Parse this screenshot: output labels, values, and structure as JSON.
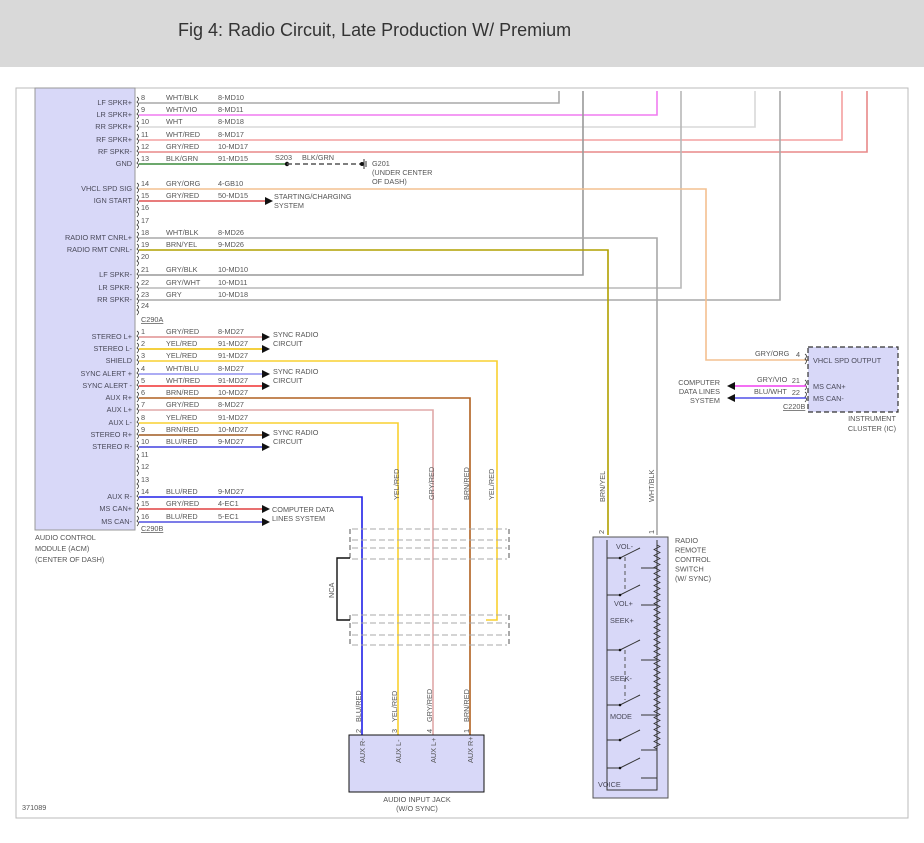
{
  "header": {
    "title": "Fig 4: Radio Circuit, Late Production W/ Premium"
  },
  "figure_id": "371089",
  "acm": {
    "caption": [
      "AUDIO CONTROL",
      "MODULE (ACM)",
      "(CENTER OF DASH)"
    ],
    "connector_a": "C290A",
    "connector_b": "C290B",
    "pins_a": [
      {
        "pin": "8",
        "signal": "LF SPKR+",
        "wire": "WHT/BLK",
        "circuit": "8-MD10",
        "color": "#a8a8a8"
      },
      {
        "pin": "9",
        "signal": "LR SPKR+",
        "wire": "WHT/VIO",
        "circuit": "8-MD11",
        "color": "#f07cf0"
      },
      {
        "pin": "10",
        "signal": "RR SPKR+",
        "wire": "WHT",
        "circuit": "8-MD18",
        "color": "#d8d8d8"
      },
      {
        "pin": "11",
        "signal": "RF SPKR+",
        "wire": "WHT/RED",
        "circuit": "8-MD17",
        "color": "#f4a0a0"
      },
      {
        "pin": "12",
        "signal": "RF SPKR-",
        "wire": "GRY/RED",
        "circuit": "10-MD17",
        "color": "#e88888"
      },
      {
        "pin": "13",
        "signal": "GND",
        "wire": "BLK/GRN",
        "circuit": "91-MD15",
        "color": "#3c8c3c"
      },
      {
        "pin": "14",
        "signal": "VHCL SPD SIG",
        "wire": "GRY/ORG",
        "circuit": "4-GB10",
        "color": "#f4c090"
      },
      {
        "pin": "15",
        "signal": "IGN START",
        "wire": "GRY/RED",
        "circuit": "50-MD15",
        "color": "#e05050"
      },
      {
        "pin": "16",
        "signal": "",
        "wire": "",
        "circuit": "",
        "color": ""
      },
      {
        "pin": "17",
        "signal": "",
        "wire": "",
        "circuit": "",
        "color": ""
      },
      {
        "pin": "18",
        "signal": "RADIO RMT CNRL+",
        "wire": "WHT/BLK",
        "circuit": "8-MD26",
        "color": "#a8a8a8"
      },
      {
        "pin": "19",
        "signal": "RADIO RMT CNRL-",
        "wire": "BRN/YEL",
        "circuit": "9-MD26",
        "color": "#b0a000"
      },
      {
        "pin": "20",
        "signal": "",
        "wire": "",
        "circuit": "",
        "color": ""
      },
      {
        "pin": "21",
        "signal": "LF SPKR-",
        "wire": "GRY/BLK",
        "circuit": "10-MD10",
        "color": "#999999"
      },
      {
        "pin": "22",
        "signal": "LR SPKR-",
        "wire": "GRY/WHT",
        "circuit": "10-MD11",
        "color": "#b8b8b8"
      },
      {
        "pin": "23",
        "signal": "RR SPKR-",
        "wire": "GRY",
        "circuit": "10-MD18",
        "color": "#a8a8a8"
      },
      {
        "pin": "24",
        "signal": "",
        "wire": "",
        "circuit": "",
        "color": ""
      }
    ],
    "pins_b": [
      {
        "pin": "1",
        "signal": "STEREO L+",
        "wire": "GRY/RED",
        "circuit": "8-MD27",
        "color": "#e09090"
      },
      {
        "pin": "2",
        "signal": "STEREO L-",
        "wire": "YEL/RED",
        "circuit": "91-MD27",
        "color": "#f0c000"
      },
      {
        "pin": "3",
        "signal": "SHIELD",
        "wire": "YEL/RED",
        "circuit": "91-MD27",
        "color": "#f8d030"
      },
      {
        "pin": "4",
        "signal": "SYNC ALERT +",
        "wire": "WHT/BLU",
        "circuit": "8-MD27",
        "color": "#9090f0"
      },
      {
        "pin": "5",
        "signal": "SYNC ALERT -",
        "wire": "WHT/RED",
        "circuit": "91-MD27",
        "color": "#f03030"
      },
      {
        "pin": "6",
        "signal": "AUX R+",
        "wire": "BRN/RED",
        "circuit": "10-MD27",
        "color": "#b06020"
      },
      {
        "pin": "7",
        "signal": "AUX L+",
        "wire": "GRY/RED",
        "circuit": "8-MD27",
        "color": "#e0a8a8"
      },
      {
        "pin": "8",
        "signal": "AUX L-",
        "wire": "YEL/RED",
        "circuit": "91-MD27",
        "color": "#f8d030"
      },
      {
        "pin": "9",
        "signal": "STEREO R+",
        "wire": "BRN/RED",
        "circuit": "10-MD27",
        "color": "#a05a20"
      },
      {
        "pin": "10",
        "signal": "STEREO R-",
        "wire": "BLU/RED",
        "circuit": "9-MD27",
        "color": "#4040e0"
      },
      {
        "pin": "11",
        "signal": "",
        "wire": "",
        "circuit": "",
        "color": ""
      },
      {
        "pin": "12",
        "signal": "",
        "wire": "",
        "circuit": "",
        "color": ""
      },
      {
        "pin": "13",
        "signal": "",
        "wire": "",
        "circuit": "",
        "color": ""
      },
      {
        "pin": "14",
        "signal": "AUX R-",
        "wire": "BLU/RED",
        "circuit": "9-MD27",
        "color": "#2020e8"
      },
      {
        "pin": "15",
        "signal": "MS CAN+",
        "wire": "GRY/RED",
        "circuit": "4-EC1",
        "color": "#e04040"
      },
      {
        "pin": "16",
        "signal": "MS CAN-",
        "wire": "BLU/RED",
        "circuit": "5-EC1",
        "color": "#5050e0"
      }
    ]
  },
  "destinations": {
    "sync_radio_circuit": [
      "SYNC RADIO",
      "CIRCUIT"
    ],
    "starting_charging": [
      "STARTING/CHARGING",
      "SYSTEM"
    ],
    "computer_data_lines": [
      "COMPUTER DATA",
      "LINES SYSTEM"
    ]
  },
  "ground": {
    "splice": "S203",
    "wire": "BLK/GRN",
    "name": "G201",
    "location": [
      "(UNDER CENTER",
      "OF DASH)"
    ]
  },
  "instrument_cluster": {
    "caption": [
      "INSTRUMENT",
      "CLUSTER (IC)"
    ],
    "connector": "C220B",
    "pins": [
      {
        "pin": "4",
        "signal": "VHCL SPD OUTPUT",
        "wire": "GRY/ORG"
      },
      {
        "pin": "21",
        "signal": "MS CAN+",
        "wire": "GRY/VIO",
        "color": "#f040f0"
      },
      {
        "pin": "22",
        "signal": "MS CAN-",
        "wire": "BLU/WHT",
        "color": "#5050e8"
      }
    ],
    "dest": [
      "COMPUTER",
      "DATA LINES",
      "SYSTEM"
    ]
  },
  "remote_switch": {
    "caption": [
      "RADIO",
      "REMOTE",
      "CONTROL",
      "SWITCH",
      "(W/ SYNC)"
    ],
    "pins": [
      {
        "pin": "2",
        "wire": "BRN/YEL"
      },
      {
        "pin": "1",
        "wire": "WHT/BLK"
      }
    ],
    "buttons": [
      "VOL-",
      "VOL+",
      "SEEK+",
      "SEEK-",
      "MODE",
      "VOICE"
    ]
  },
  "aux_jack": {
    "caption": [
      "AUDIO INPUT JACK",
      "(W/O SYNC)"
    ],
    "shield_label": "NCA",
    "upper_labels": [
      "YEL/RED",
      "GRY/RED",
      "BRN/RED",
      "YEL/RED"
    ],
    "pins": [
      {
        "pin": "2",
        "wire": "BLU/RED",
        "signal": "AUX R-"
      },
      {
        "pin": "3",
        "wire": "YEL/RED",
        "signal": "AUX L-"
      },
      {
        "pin": "4",
        "wire": "GRY/RED",
        "signal": "AUX L+"
      },
      {
        "pin": "1",
        "wire": "BRN/RED",
        "signal": "AUX R+"
      }
    ]
  }
}
